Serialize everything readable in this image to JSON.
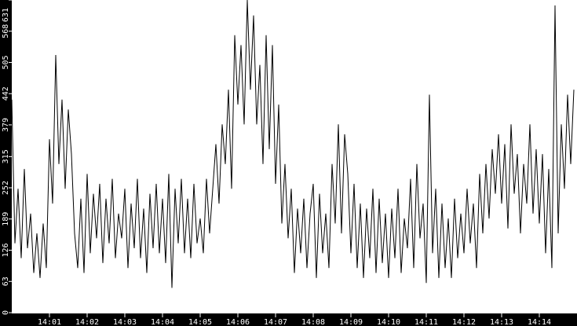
{
  "chart_data": {
    "type": "line",
    "title": "",
    "xlabel": "",
    "ylabel": "",
    "ylim": [
      0,
      631
    ],
    "xlim": [
      "14:00:00",
      "14:15:00"
    ],
    "grid": false,
    "colors": {
      "background": "#ffffff",
      "axis_band": "#000000",
      "line": "#000000",
      "tick_text": "#ffffff"
    },
    "y_ticks": [
      0,
      63,
      126,
      189,
      252,
      315,
      379,
      442,
      505,
      568,
      631
    ],
    "x_ticks": [
      "14:01",
      "14:02",
      "14:03",
      "14:04",
      "14:05",
      "14:06",
      "14:07",
      "14:08",
      "14:09",
      "14:10",
      "14:11",
      "14:12",
      "14:13",
      "14:14"
    ],
    "x_start": "14:00:00",
    "x_step_seconds": 5,
    "values": [
      430,
      140,
      250,
      110,
      290,
      130,
      200,
      80,
      160,
      70,
      180,
      90,
      350,
      220,
      520,
      300,
      430,
      250,
      410,
      320,
      160,
      90,
      230,
      80,
      280,
      120,
      240,
      150,
      260,
      100,
      230,
      140,
      270,
      110,
      200,
      150,
      250,
      90,
      220,
      130,
      270,
      110,
      210,
      80,
      240,
      130,
      260,
      120,
      230,
      100,
      280,
      50,
      250,
      140,
      270,
      120,
      230,
      110,
      260,
      140,
      190,
      120,
      270,
      160,
      250,
      340,
      220,
      380,
      300,
      450,
      250,
      560,
      420,
      540,
      380,
      631,
      450,
      600,
      380,
      500,
      300,
      560,
      330,
      540,
      260,
      420,
      180,
      300,
      150,
      250,
      80,
      210,
      120,
      230,
      90,
      200,
      260,
      70,
      240,
      120,
      200,
      90,
      300,
      180,
      380,
      160,
      360,
      280,
      120,
      260,
      90,
      220,
      70,
      210,
      110,
      250,
      80,
      230,
      100,
      200,
      70,
      210,
      110,
      250,
      80,
      190,
      130,
      270,
      90,
      300,
      150,
      220,
      60,
      440,
      120,
      250,
      70,
      220,
      90,
      190,
      70,
      230,
      110,
      200,
      120,
      250,
      140,
      220,
      90,
      280,
      160,
      300,
      190,
      330,
      240,
      360,
      220,
      340,
      170,
      380,
      240,
      320,
      160,
      300,
      220,
      380,
      200,
      330,
      180,
      320,
      120,
      290,
      90,
      620,
      160,
      380,
      250,
      440,
      300,
      450
    ]
  }
}
